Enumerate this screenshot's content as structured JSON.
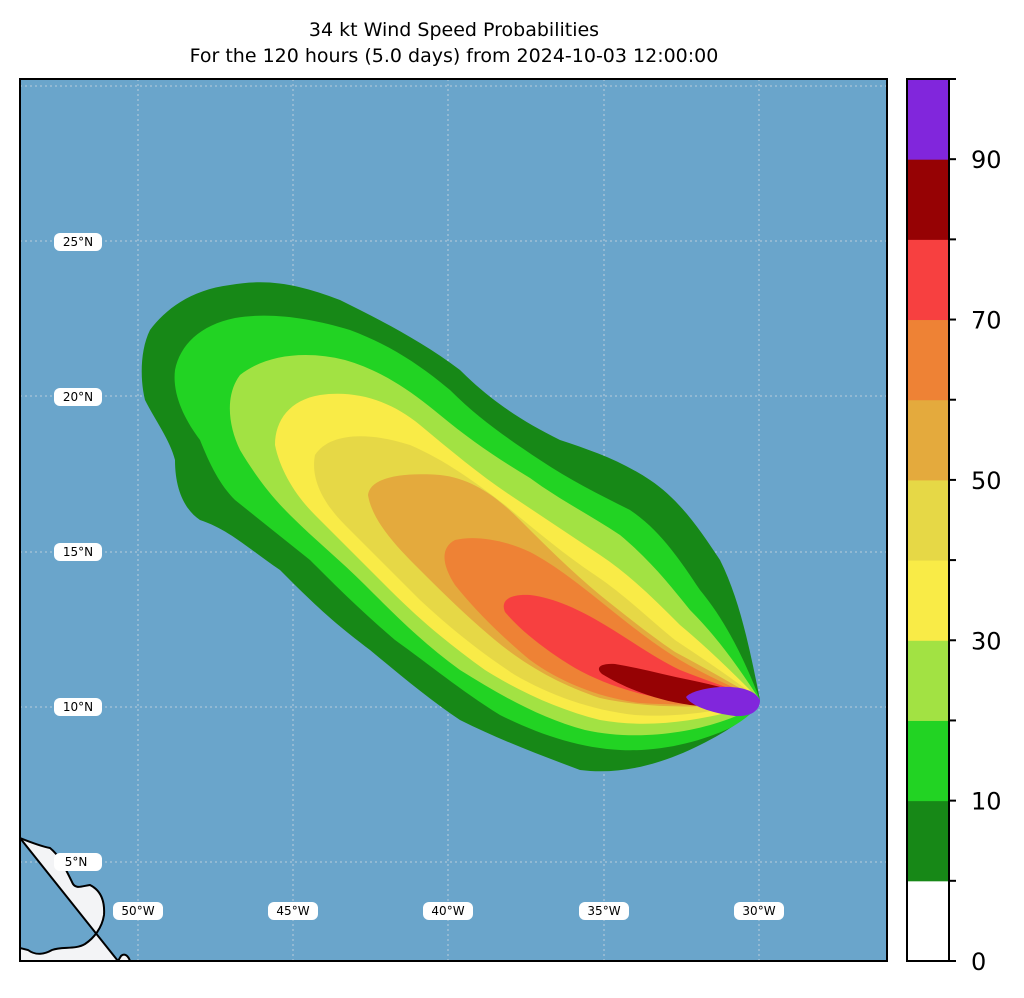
{
  "title": {
    "line1": "34 kt Wind Speed Probabilities",
    "line2": "For the 120 hours (5.0 days) from 2024-10-03 12:00:00"
  },
  "map": {
    "ocean_color": "#6aa5cb",
    "land_color": "#f3f4f6",
    "lat_labels": [
      "25°N",
      "20°N",
      "15°N",
      "10°N",
      "5°N"
    ],
    "lon_labels": [
      "50°W",
      "45°W",
      "40°W",
      "35°W",
      "30°W"
    ],
    "storm_center": "approx. 30°W, 10°N"
  },
  "colorbar": {
    "bands": [
      {
        "range": "0-5",
        "color": "#ffffff"
      },
      {
        "range": "5-10",
        "color": "#178817"
      },
      {
        "range": "10-20",
        "color": "#22d323"
      },
      {
        "range": "20-30",
        "color": "#a2e243"
      },
      {
        "range": "30-40",
        "color": "#f9eb47"
      },
      {
        "range": "40-50",
        "color": "#e6d846"
      },
      {
        "range": "50-60",
        "color": "#e4aa3d"
      },
      {
        "range": "60-70",
        "color": "#ee8235"
      },
      {
        "range": "70-80",
        "color": "#f74040"
      },
      {
        "range": "80-90",
        "color": "#960204"
      },
      {
        "range": "90-100",
        "color": "#8126dc"
      }
    ],
    "labels": [
      "0",
      "10",
      "30",
      "50",
      "70",
      "90"
    ]
  }
}
